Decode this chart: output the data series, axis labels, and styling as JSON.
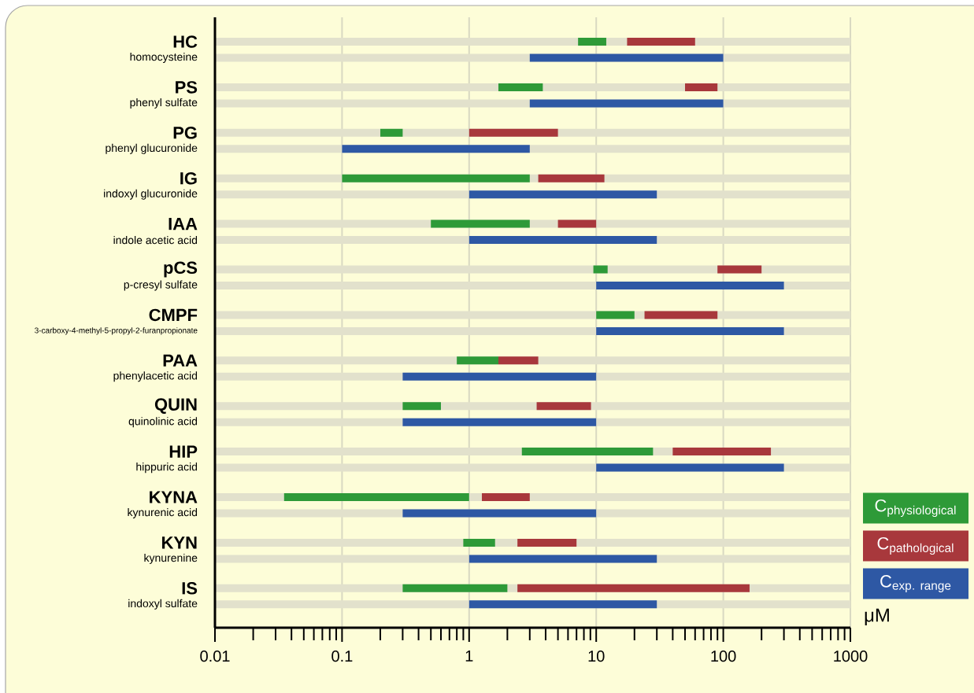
{
  "chart_data": {
    "type": "bar",
    "orientation": "horizontal",
    "log": "x",
    "xlabel": "μM",
    "categories": [
      "HC",
      "homocysteine",
      "PS",
      "phenyl sulfate",
      "PG",
      "phenyl glucuronide",
      "IG",
      "indoxyl glucuronide",
      "IAA",
      "indole acetic acid",
      "pCS",
      "p-cresyl sulfate",
      "CMPF",
      "3-carboxy-4-methyl-5-propyl-2-furanpropionate",
      "PAA",
      "phenylacetic acid",
      "QUIN",
      "quinolinic acid",
      "HIP",
      "hippuric acid",
      "KYNA",
      "kynurenic acid",
      "KYN",
      "kynurenine",
      "IS",
      "indoxyl sulfate"
    ],
    "series": [
      {
        "name": "\\mathrm{C}_{\\mathrm{physiological}}",
        "color": "#2e9a38",
        "base": [
          7.2,
          null,
          1.7,
          null,
          0.2,
          null,
          0.1,
          null,
          0.5,
          null,
          9.5,
          null,
          10,
          null,
          0.8,
          null,
          0.3,
          null,
          2.6,
          null,
          0.035,
          null,
          0.9,
          null,
          0.3,
          null
        ],
        "values": [
          4.8,
          null,
          2.1,
          null,
          0.1,
          null,
          2.9,
          null,
          2.5,
          null,
          2.8,
          null,
          10,
          null,
          0.9,
          null,
          0.3,
          null,
          25.4,
          null,
          0.965,
          null,
          0.7,
          null,
          1.7,
          null
        ]
      },
      {
        "name": "\\mathrm{C}_{\\mathrm{pathological}}",
        "color": "#a8383c",
        "base": [
          17.5,
          null,
          50,
          null,
          1,
          null,
          3.5,
          null,
          5,
          null,
          90,
          null,
          24,
          null,
          1.7,
          null,
          3.4,
          null,
          40,
          null,
          1.26,
          null,
          2.4,
          null,
          2.4,
          null
        ],
        "values": [
          42.5,
          null,
          40,
          null,
          4,
          null,
          8.1,
          null,
          5,
          null,
          110,
          null,
          66,
          null,
          1.8,
          null,
          5.7,
          null,
          197,
          null,
          1.74,
          null,
          4.6,
          null,
          158.6,
          null
        ]
      },
      {
        "name": "\\mathrm{C}_{\\mathrm{exp.\\ range}}",
        "color": "#2e58a4",
        "base": [
          null,
          3,
          null,
          3,
          null,
          0.1,
          null,
          1,
          null,
          1,
          null,
          10,
          null,
          10,
          null,
          0.3,
          null,
          0.3,
          null,
          10,
          null,
          0.3,
          null,
          1,
          null,
          1
        ],
        "values": [
          null,
          97,
          null,
          97,
          null,
          2.9,
          null,
          29,
          null,
          29,
          null,
          290,
          null,
          290,
          null,
          9.7,
          null,
          9.7,
          null,
          290,
          null,
          9.7,
          null,
          29,
          null,
          29
        ]
      }
    ],
    "xlim": [
      0.01,
      1000
    ],
    "xticks": [
      0.01,
      0.1,
      1,
      10,
      100,
      1000
    ],
    "grid": true,
    "legend": "right"
  }
}
